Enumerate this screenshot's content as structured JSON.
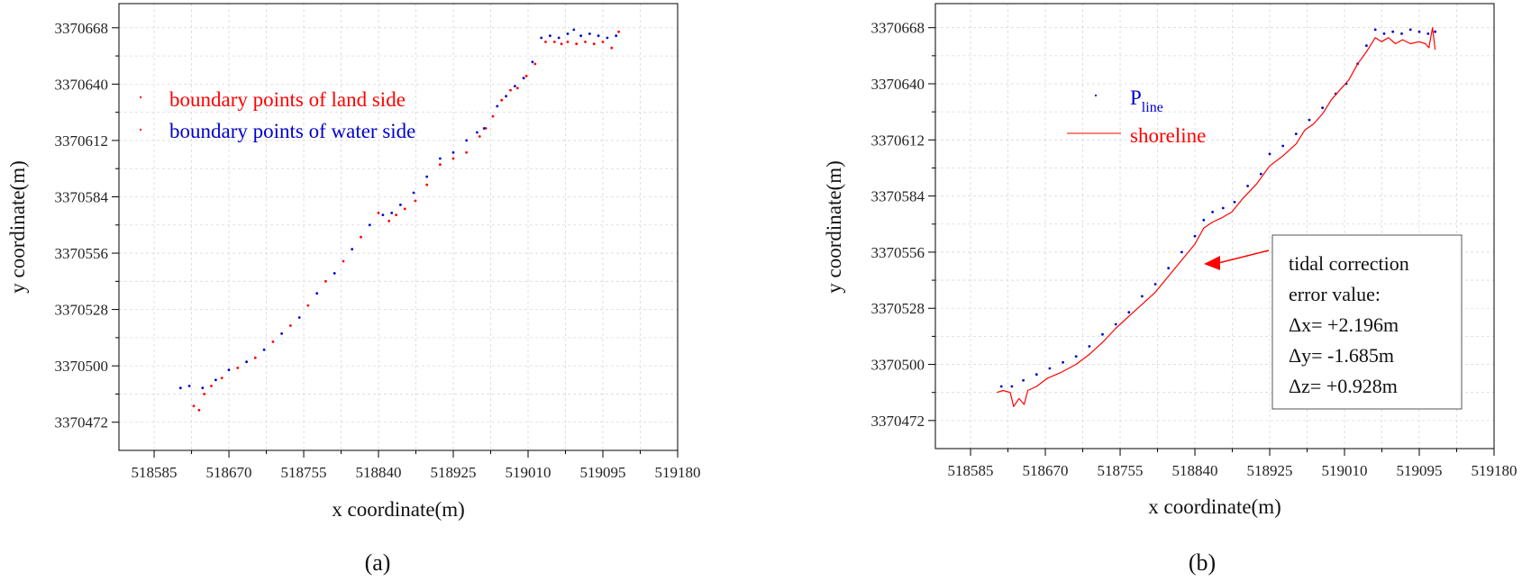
{
  "chart_data": [
    {
      "type": "scatter",
      "panel_label": "(a)",
      "xlabel": "x coordinate(m)",
      "ylabel": "y coordinate(m)",
      "xlim": [
        518545,
        519180
      ],
      "ylim": [
        3370458,
        3370680
      ],
      "xticks": [
        "518585",
        "518670",
        "518755",
        "518840",
        "518925",
        "519010",
        "519095",
        "519180"
      ],
      "yticks": [
        "3370472",
        "3370500",
        "3370528",
        "3370556",
        "3370584",
        "3370612",
        "3370640",
        "3370668"
      ],
      "grid": true,
      "legend_position": "top-left",
      "series": [
        {
          "name": "boundary points of land side",
          "color": "#ff0000",
          "x": [
            518630,
            518636,
            518642,
            518650,
            518662,
            518680,
            518700,
            518720,
            518740,
            518760,
            518780,
            518800,
            518820,
            518840,
            518852,
            518860,
            518870,
            518882,
            518895,
            518910,
            518925,
            518940,
            518955,
            518962,
            518970,
            518980,
            518990,
            518998,
            519008,
            519018,
            519030,
            519040,
            519048,
            519055,
            519065,
            519075,
            519085,
            519095,
            519105,
            519113
          ],
          "y": [
            3370480,
            3370478,
            3370486,
            3370490,
            3370494,
            3370499,
            3370504,
            3370512,
            3370520,
            3370530,
            3370542,
            3370552,
            3370564,
            3370576,
            3370572,
            3370575,
            3370578,
            3370582,
            3370590,
            3370600,
            3370603,
            3370606,
            3370614,
            3370618,
            3370624,
            3370632,
            3370637,
            3370638,
            3370644,
            3370650,
            3370661,
            3370661,
            3370660,
            3370661,
            3370660,
            3370661,
            3370660,
            3370661,
            3370658,
            3370666
          ]
        },
        {
          "name": "boundary points of water side",
          "color": "#0000cc",
          "x": [
            518615,
            518625,
            518640,
            518655,
            518670,
            518690,
            518710,
            518730,
            518750,
            518770,
            518790,
            518810,
            518830,
            518845,
            518855,
            518865,
            518880,
            518895,
            518910,
            518925,
            518940,
            518952,
            518960,
            518975,
            518985,
            518995,
            519005,
            519015,
            519025,
            519035,
            519045,
            519055,
            519062,
            519070,
            519080,
            519090,
            519100,
            519110
          ],
          "y": [
            3370489,
            3370490,
            3370489,
            3370493,
            3370498,
            3370502,
            3370508,
            3370516,
            3370524,
            3370536,
            3370546,
            3370558,
            3370570,
            3370575,
            3370576,
            3370580,
            3370586,
            3370594,
            3370603,
            3370606,
            3370612,
            3370616,
            3370618,
            3370629,
            3370634,
            3370639,
            3370643,
            3370651,
            3370663,
            3370664,
            3370663,
            3370665,
            3370667,
            3370664,
            3370665,
            3370664,
            3370663,
            3370664
          ]
        }
      ]
    },
    {
      "type": "line",
      "panel_label": "(b)",
      "xlabel": "x coordinate(m)",
      "ylabel": "y coordinate(m)",
      "xlim": [
        518545,
        519180
      ],
      "ylim": [
        3370458,
        3370680
      ],
      "xticks": [
        "518585",
        "518670",
        "518755",
        "518840",
        "518925",
        "519010",
        "519095",
        "519180"
      ],
      "yticks": [
        "3370472",
        "3370500",
        "3370528",
        "3370556",
        "3370584",
        "3370612",
        "3370640",
        "3370668"
      ],
      "grid": true,
      "legend_position": "top-left",
      "series": [
        {
          "name": "P",
          "name_sub": "line",
          "mark": "dots",
          "color": "#0000cc",
          "x": [
            518620,
            518632,
            518645,
            518660,
            518675,
            518690,
            518705,
            518720,
            518735,
            518750,
            518765,
            518780,
            518795,
            518810,
            518825,
            518840,
            518850,
            518860,
            518872,
            518885,
            518900,
            518915,
            518925,
            518940,
            518955,
            518970,
            518985,
            519000,
            519012,
            519025,
            519035,
            519045,
            519055,
            519065,
            519075,
            519085,
            519095,
            519105,
            519113
          ],
          "y": [
            3370489,
            3370489,
            3370492,
            3370495,
            3370498,
            3370501,
            3370504,
            3370509,
            3370515,
            3370520,
            3370526,
            3370534,
            3370540,
            3370548,
            3370556,
            3370564,
            3370572,
            3370576,
            3370578,
            3370581,
            3370589,
            3370595,
            3370605,
            3370609,
            3370615,
            3370622,
            3370628,
            3370635,
            3370640,
            3370650,
            3370659,
            3370667,
            3370665,
            3370666,
            3370665,
            3370667,
            3370666,
            3370665,
            3370666
          ]
        },
        {
          "name": "shoreline",
          "mark": "line",
          "color": "#ff0000",
          "x": [
            518615,
            518622,
            518630,
            518634,
            518640,
            518646,
            518650,
            518660,
            518672,
            518688,
            518705,
            518720,
            518735,
            518750,
            518765,
            518780,
            518795,
            518810,
            518825,
            518840,
            518850,
            518860,
            518870,
            518882,
            518895,
            518910,
            518925,
            518940,
            518955,
            518965,
            518975,
            518985,
            518995,
            519005,
            519015,
            519025,
            519035,
            519045,
            519052,
            519060,
            519068,
            519076,
            519085,
            519095,
            519102,
            519106,
            519110,
            519113
          ],
          "y": [
            3370486,
            3370487,
            3370486,
            3370479,
            3370483,
            3370480,
            3370487,
            3370489,
            3370493,
            3370496,
            3370500,
            3370505,
            3370511,
            3370518,
            3370524,
            3370530,
            3370536,
            3370544,
            3370552,
            3370560,
            3370568,
            3370571,
            3370573,
            3370576,
            3370583,
            3370590,
            3370599,
            3370604,
            3370610,
            3370617,
            3370620,
            3370625,
            3370632,
            3370637,
            3370642,
            3370650,
            3370656,
            3370663,
            3370661,
            3370663,
            3370660,
            3370662,
            3370660,
            3370661,
            3370660,
            3370658,
            3370668,
            3370657
          ]
        }
      ],
      "annotation": {
        "lines": [
          "tidal correction",
          "error value:",
          "Δx= +2.196m",
          "Δy= -1.685m",
          "Δz= +0.928m"
        ],
        "arrow_color": "#ff0000"
      }
    }
  ]
}
